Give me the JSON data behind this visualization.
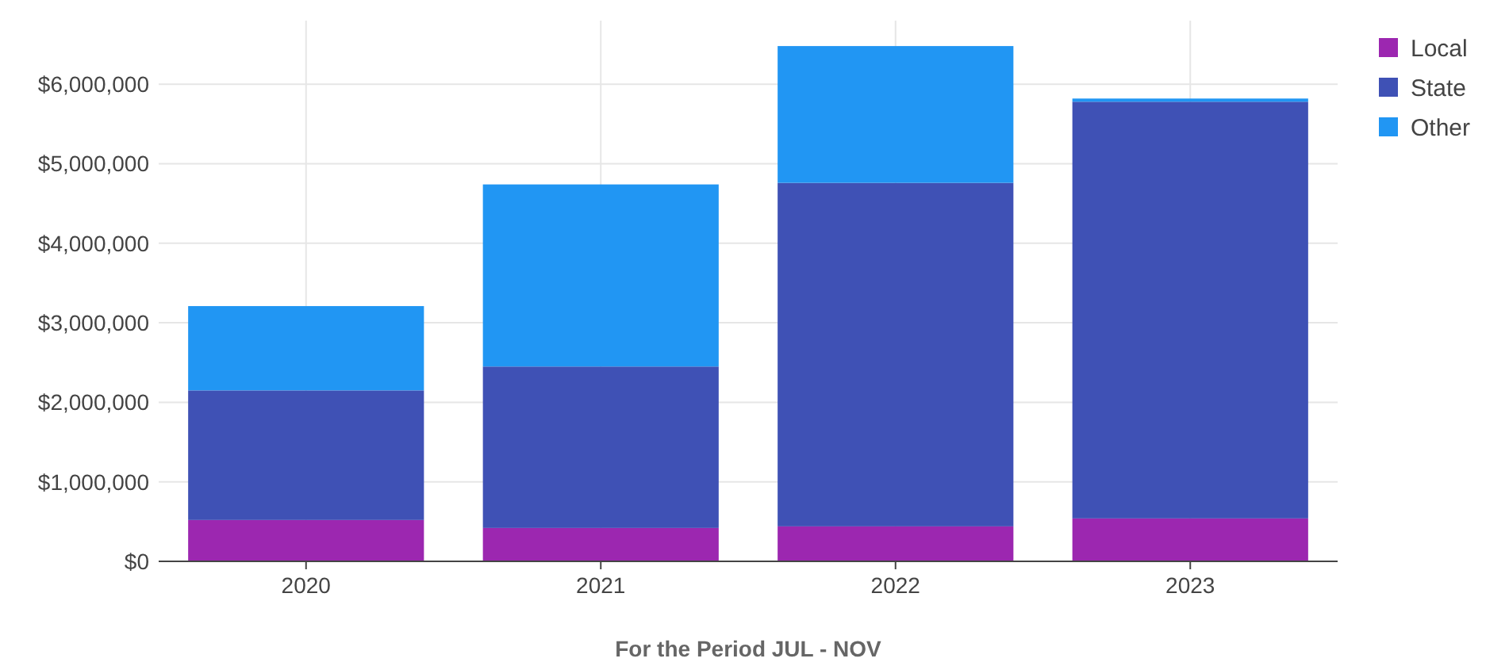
{
  "chart_data": {
    "type": "bar",
    "stacked": true,
    "xlabel": "For the Period JUL - NOV",
    "categories": [
      "2020",
      "2021",
      "2022",
      "2023"
    ],
    "series": [
      {
        "name": "Local",
        "color": "#9c27b0",
        "values": [
          520000,
          420000,
          440000,
          540000
        ]
      },
      {
        "name": "State",
        "color": "#3f51b5",
        "values": [
          1630000,
          2030000,
          4320000,
          5240000
        ]
      },
      {
        "name": "Other",
        "color": "#2196f3",
        "values": [
          1060000,
          2290000,
          1720000,
          40000
        ]
      }
    ],
    "ylim": [
      0,
      6800000
    ],
    "yticks": [
      {
        "value": 0,
        "label": "$0"
      },
      {
        "value": 1000000,
        "label": "$1,000,000"
      },
      {
        "value": 2000000,
        "label": "$2,000,000"
      },
      {
        "value": 3000000,
        "label": "$3,000,000"
      },
      {
        "value": 4000000,
        "label": "$4,000,000"
      },
      {
        "value": 5000000,
        "label": "$5,000,000"
      },
      {
        "value": 6000000,
        "label": "$6,000,000"
      }
    ],
    "grid": true,
    "legend": "top right"
  }
}
